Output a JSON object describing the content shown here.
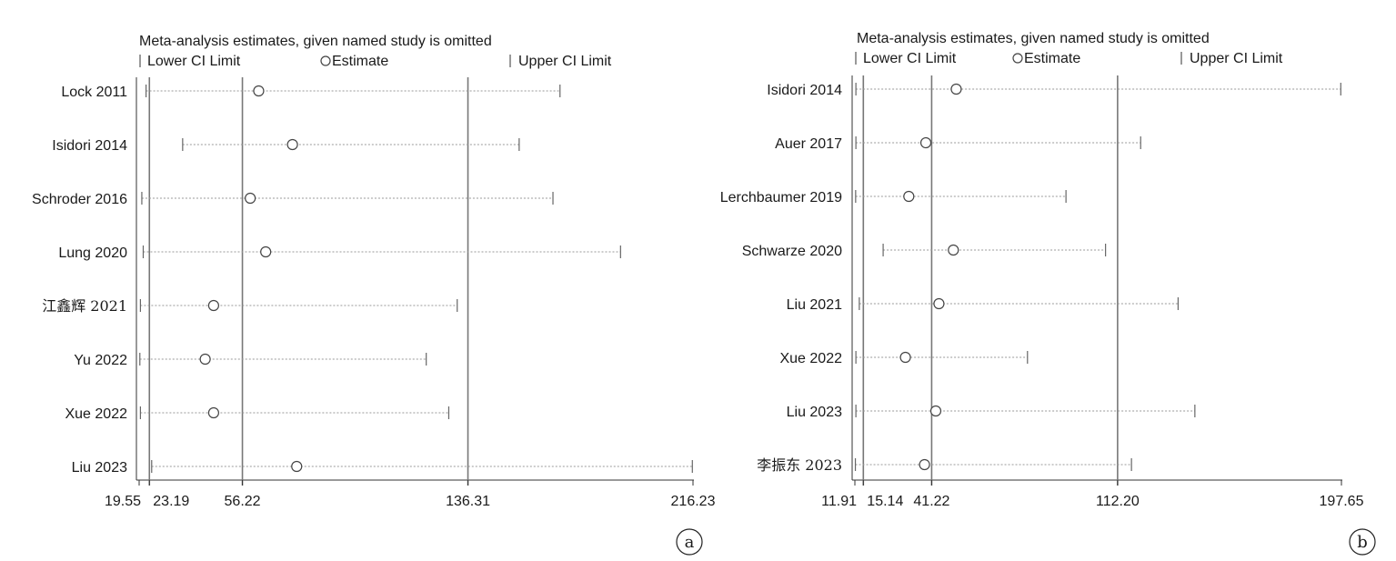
{
  "chart_data": [
    {
      "type": "forest-sensitivity",
      "title": "Meta-analysis estimates, given named study is omitted",
      "legend": [
        "Lower CI Limit",
        "Estimate",
        "Upper CI Limit"
      ],
      "legend_placement": "top",
      "panel_label": "a",
      "x_ticks": [
        "19.55",
        "23.19",
        "56.22",
        "136.31",
        "216.23"
      ],
      "xlim": [
        19.55,
        216.23
      ],
      "reference_lines": [
        23.19,
        56.22,
        136.31
      ],
      "studies": [
        {
          "label": "Lock  2011",
          "lower": 22.0,
          "estimate": 62.0,
          "upper": 169.0
        },
        {
          "label": "Isidori  2014",
          "lower": 35.0,
          "estimate": 74.0,
          "upper": 154.5
        },
        {
          "label": "Schroder  2016",
          "lower": 20.5,
          "estimate": 59.0,
          "upper": 166.5
        },
        {
          "label": "Lung  2020",
          "lower": 21.0,
          "estimate": 64.5,
          "upper": 190.5
        },
        {
          "label": "江鑫辉 2021",
          "lower": 20.0,
          "estimate": 46.0,
          "upper": 132.5
        },
        {
          "label": "Yu  2022",
          "lower": 19.8,
          "estimate": 43.0,
          "upper": 121.5
        },
        {
          "label": "Xue  2022",
          "lower": 20.0,
          "estimate": 46.0,
          "upper": 129.5
        },
        {
          "label": "Liu  2023",
          "lower": 24.0,
          "estimate": 75.5,
          "upper": 216.0
        }
      ]
    },
    {
      "type": "forest-sensitivity",
      "title": "Meta-analysis estimates, given named study is omitted",
      "legend": [
        "Lower CI Limit",
        "Estimate",
        "Upper CI Limit"
      ],
      "legend_placement": "top",
      "panel_label": "b",
      "x_ticks": [
        "11.91",
        "15.14",
        "41.22",
        "112.20",
        "197.65"
      ],
      "xlim": [
        11.91,
        197.65
      ],
      "reference_lines": [
        15.14,
        41.22,
        112.2
      ],
      "studies": [
        {
          "label": "Isidori 2014",
          "lower": 12.3,
          "estimate": 50.6,
          "upper": 197.4
        },
        {
          "label": "Auer  2017",
          "lower": 12.3,
          "estimate": 39.0,
          "upper": 121.0
        },
        {
          "label": "Lerchbaumer 2019",
          "lower": 12.2,
          "estimate": 32.5,
          "upper": 92.5
        },
        {
          "label": "Schwarze 2020",
          "lower": 22.7,
          "estimate": 49.5,
          "upper": 107.6
        },
        {
          "label": "Liu 2021",
          "lower": 13.6,
          "estimate": 44.0,
          "upper": 135.3
        },
        {
          "label": "Xue  2022",
          "lower": 12.3,
          "estimate": 31.2,
          "upper": 77.8
        },
        {
          "label": "Liu  2023",
          "lower": 12.3,
          "estimate": 42.8,
          "upper": 141.7
        },
        {
          "label": "李振东 2023",
          "lower": 12.1,
          "estimate": 38.5,
          "upper": 117.5
        }
      ]
    }
  ]
}
